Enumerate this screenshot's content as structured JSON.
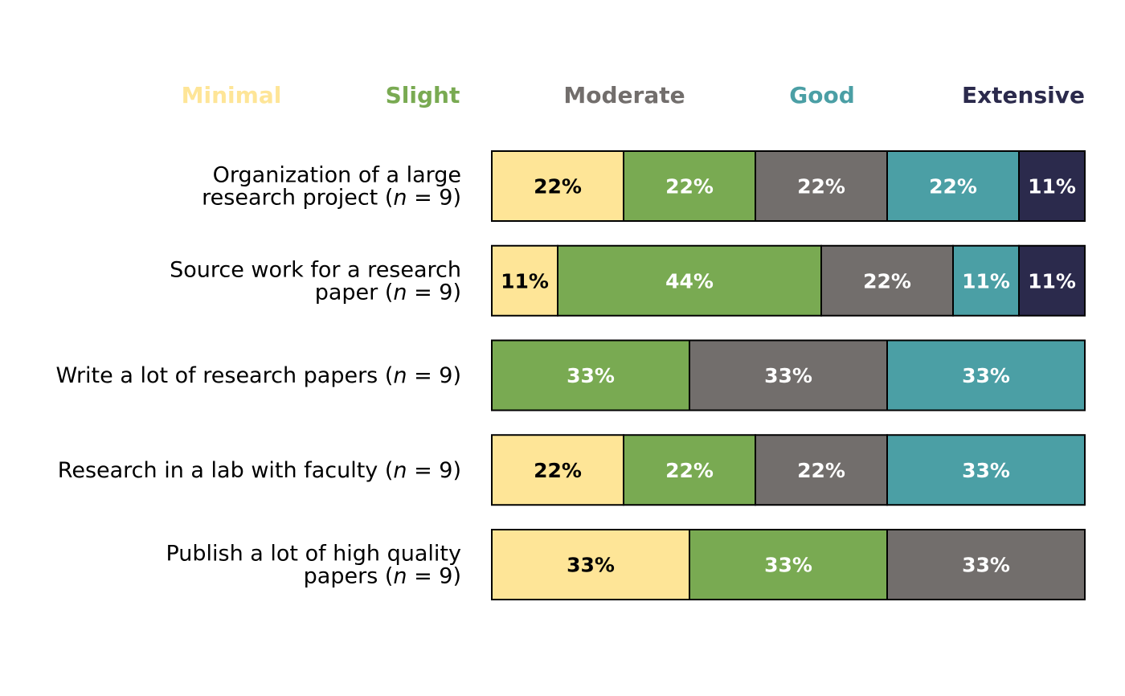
{
  "chart_data": {
    "type": "bar",
    "orientation": "horizontal",
    "stacked": true,
    "normalized_percent": true,
    "legend_position": "top",
    "grid": false,
    "xlim": [
      0,
      100
    ],
    "legend": [
      "Minimal",
      "Slight",
      "Moderate",
      "Good",
      "Extensive"
    ],
    "colors": {
      "Minimal": "#fee597",
      "Slight": "#79aa52",
      "Moderate": "#726e6c",
      "Good": "#4b9fa5",
      "Extensive": "#2b2a4c"
    },
    "text_colors": {
      "Minimal": "#000000",
      "Slight": "#ffffff",
      "Moderate": "#ffffff",
      "Good": "#ffffff",
      "Extensive": "#ffffff"
    },
    "rows": [
      {
        "label_lines": [
          "Organization of a large",
          "research project ("
        ],
        "n_text": "n",
        "n_suffix": " = 9)",
        "segments": [
          {
            "category": "Minimal",
            "value": 22,
            "label": "22%"
          },
          {
            "category": "Slight",
            "value": 22,
            "label": "22%"
          },
          {
            "category": "Moderate",
            "value": 22,
            "label": "22%"
          },
          {
            "category": "Good",
            "value": 22,
            "label": "22%"
          },
          {
            "category": "Extensive",
            "value": 11,
            "label": "11%"
          }
        ]
      },
      {
        "label_lines": [
          "Source work for a research",
          "paper ("
        ],
        "n_text": "n",
        "n_suffix": " = 9)",
        "segments": [
          {
            "category": "Minimal",
            "value": 11,
            "label": "11%"
          },
          {
            "category": "Slight",
            "value": 44,
            "label": "44%"
          },
          {
            "category": "Moderate",
            "value": 22,
            "label": "22%"
          },
          {
            "category": "Good",
            "value": 11,
            "label": "11%"
          },
          {
            "category": "Extensive",
            "value": 11,
            "label": "11%"
          }
        ]
      },
      {
        "label_lines": [
          "Write a lot of research papers ("
        ],
        "n_text": "n",
        "n_suffix": " = 9)",
        "segments": [
          {
            "category": "Slight",
            "value": 33,
            "label": "33%"
          },
          {
            "category": "Moderate",
            "value": 33,
            "label": "33%"
          },
          {
            "category": "Good",
            "value": 33,
            "label": "33%"
          }
        ]
      },
      {
        "label_lines": [
          "Research in a lab with faculty ("
        ],
        "n_text": "n",
        "n_suffix": " = 9)",
        "segments": [
          {
            "category": "Minimal",
            "value": 22,
            "label": "22%"
          },
          {
            "category": "Slight",
            "value": 22,
            "label": "22%"
          },
          {
            "category": "Moderate",
            "value": 22,
            "label": "22%"
          },
          {
            "category": "Good",
            "value": 33,
            "label": "33%"
          }
        ]
      },
      {
        "label_lines": [
          "Publish a lot of high quality",
          "papers ("
        ],
        "n_text": "n",
        "n_suffix": " = 9)",
        "segments": [
          {
            "category": "Minimal",
            "value": 33,
            "label": "33%"
          },
          {
            "category": "Slight",
            "value": 33,
            "label": "33%"
          },
          {
            "category": "Moderate",
            "value": 33,
            "label": "33%"
          }
        ]
      }
    ]
  }
}
